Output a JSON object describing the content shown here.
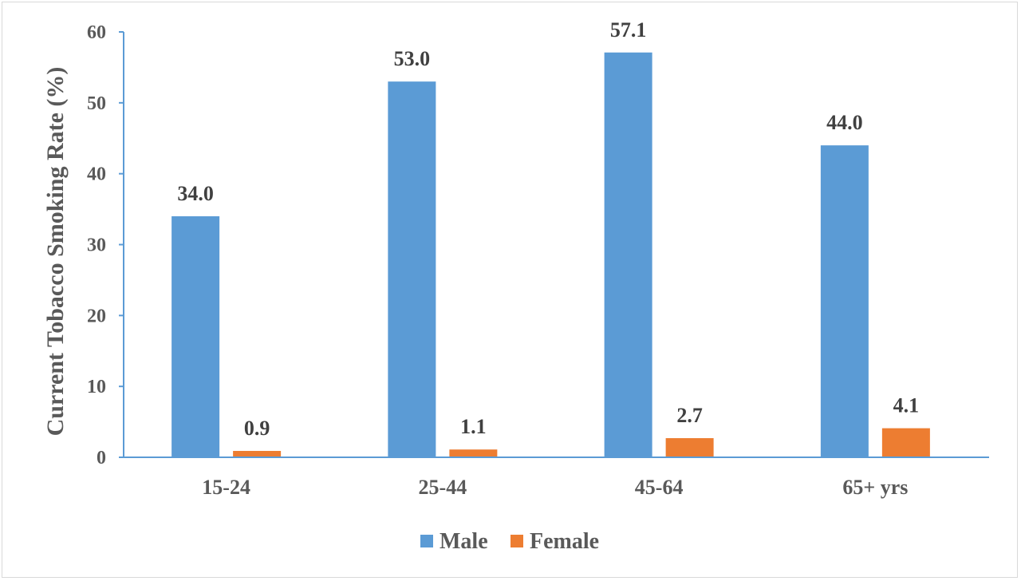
{
  "chart_data": {
    "type": "bar",
    "categories": [
      "15-24",
      "25-44",
      "45-64",
      "65+ yrs"
    ],
    "series": [
      {
        "name": "Male",
        "values": [
          34.0,
          53.0,
          57.1,
          44.0
        ],
        "color": "#5b9bd5"
      },
      {
        "name": "Female",
        "values": [
          0.9,
          1.1,
          2.7,
          4.1
        ],
        "color": "#ed7d31"
      }
    ],
    "data_labels": [
      [
        "34.0",
        "53.0",
        "57.1",
        "44.0"
      ],
      [
        "0.9",
        "1.1",
        "2.7",
        "4.1"
      ]
    ],
    "ylabel": "Current Tobacco Smoking Rate (%)",
    "xlabel": "",
    "ylim": [
      0,
      60
    ],
    "yticks": [
      "0",
      "10",
      "20",
      "30",
      "40",
      "50",
      "60"
    ],
    "grid": false,
    "legend_position": "bottom",
    "axis_color": "#5b9bd5"
  }
}
